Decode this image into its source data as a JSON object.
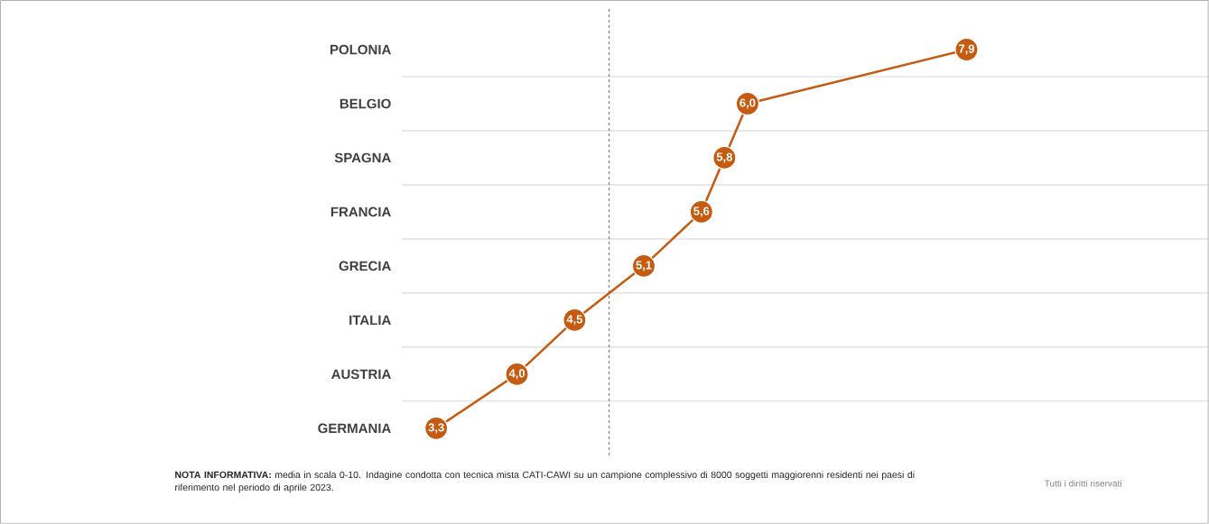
{
  "chart_data": {
    "type": "line",
    "orientation": "horizontal",
    "categories": [
      "POLONIA",
      "BELGIO",
      "SPAGNA",
      "FRANCIA",
      "GRECIA",
      "ITALIA",
      "AUSTRIA",
      "GERMANIA"
    ],
    "values": [
      7.9,
      6.0,
      5.8,
      5.6,
      5.1,
      4.5,
      4.0,
      3.3
    ],
    "value_labels": [
      "7,9",
      "6,0",
      "5,8",
      "5,6",
      "5,1",
      "4,5",
      "4,0",
      "3,3"
    ],
    "color": "#c55a11",
    "marker": "circle",
    "line_style": "solid",
    "xlim": [
      3,
      10
    ],
    "tick_labels": "y",
    "grid": "y",
    "ref_lines": [
      {
        "axis": "x",
        "value": 4.8,
        "color": "#404040",
        "line_style": "dashed"
      }
    ],
    "annotations": [
      "**NOTA INFORMATIVA:** media in scala 0-10. Indagine condotta con tecnica mista CATI-CAWI su un campione complessivo di 8000 soggetti maggiorenni residenti nei paesi di riferimento nel periodo di aprile 2023.",
      "Tutti i diritti riservati"
    ]
  }
}
